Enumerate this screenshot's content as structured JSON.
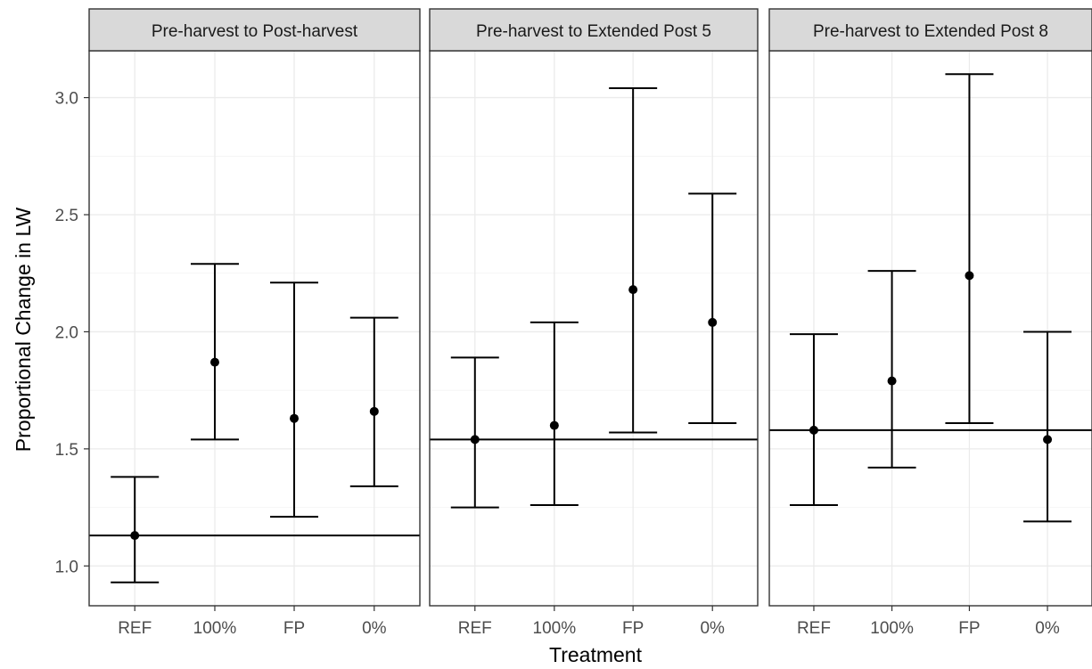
{
  "chart_data": {
    "type": "errorbar",
    "xlabel": "Treatment",
    "ylabel": "Proportional Change in LW",
    "categories": [
      "REF",
      "100%",
      "FP",
      "0%"
    ],
    "ylim": [
      0.83,
      3.2
    ],
    "yticks": [
      "1.0",
      "1.5",
      "2.0",
      "2.5",
      "3.0"
    ],
    "grid": true,
    "panels": [
      {
        "title": "Pre-harvest to Post-harvest",
        "hline": 1.13,
        "points": [
          {
            "category": "REF",
            "value": 1.13,
            "lower": 0.93,
            "upper": 1.38
          },
          {
            "category": "100%",
            "value": 1.87,
            "lower": 1.54,
            "upper": 2.29
          },
          {
            "category": "FP",
            "value": 1.63,
            "lower": 1.21,
            "upper": 2.21
          },
          {
            "category": "0%",
            "value": 1.66,
            "lower": 1.34,
            "upper": 2.06
          }
        ]
      },
      {
        "title": "Pre-harvest to Extended Post 5",
        "hline": 1.54,
        "points": [
          {
            "category": "REF",
            "value": 1.54,
            "lower": 1.25,
            "upper": 1.89
          },
          {
            "category": "100%",
            "value": 1.6,
            "lower": 1.26,
            "upper": 2.04
          },
          {
            "category": "FP",
            "value": 2.18,
            "lower": 1.57,
            "upper": 3.04
          },
          {
            "category": "0%",
            "value": 2.04,
            "lower": 1.61,
            "upper": 2.59
          }
        ]
      },
      {
        "title": "Pre-harvest to Extended Post 8",
        "hline": 1.58,
        "points": [
          {
            "category": "REF",
            "value": 1.58,
            "lower": 1.26,
            "upper": 1.99
          },
          {
            "category": "100%",
            "value": 1.79,
            "lower": 1.42,
            "upper": 2.26
          },
          {
            "category": "FP",
            "value": 2.24,
            "lower": 1.61,
            "upper": 3.1
          },
          {
            "category": "0%",
            "value": 1.54,
            "lower": 1.19,
            "upper": 2.0
          }
        ]
      }
    ]
  }
}
